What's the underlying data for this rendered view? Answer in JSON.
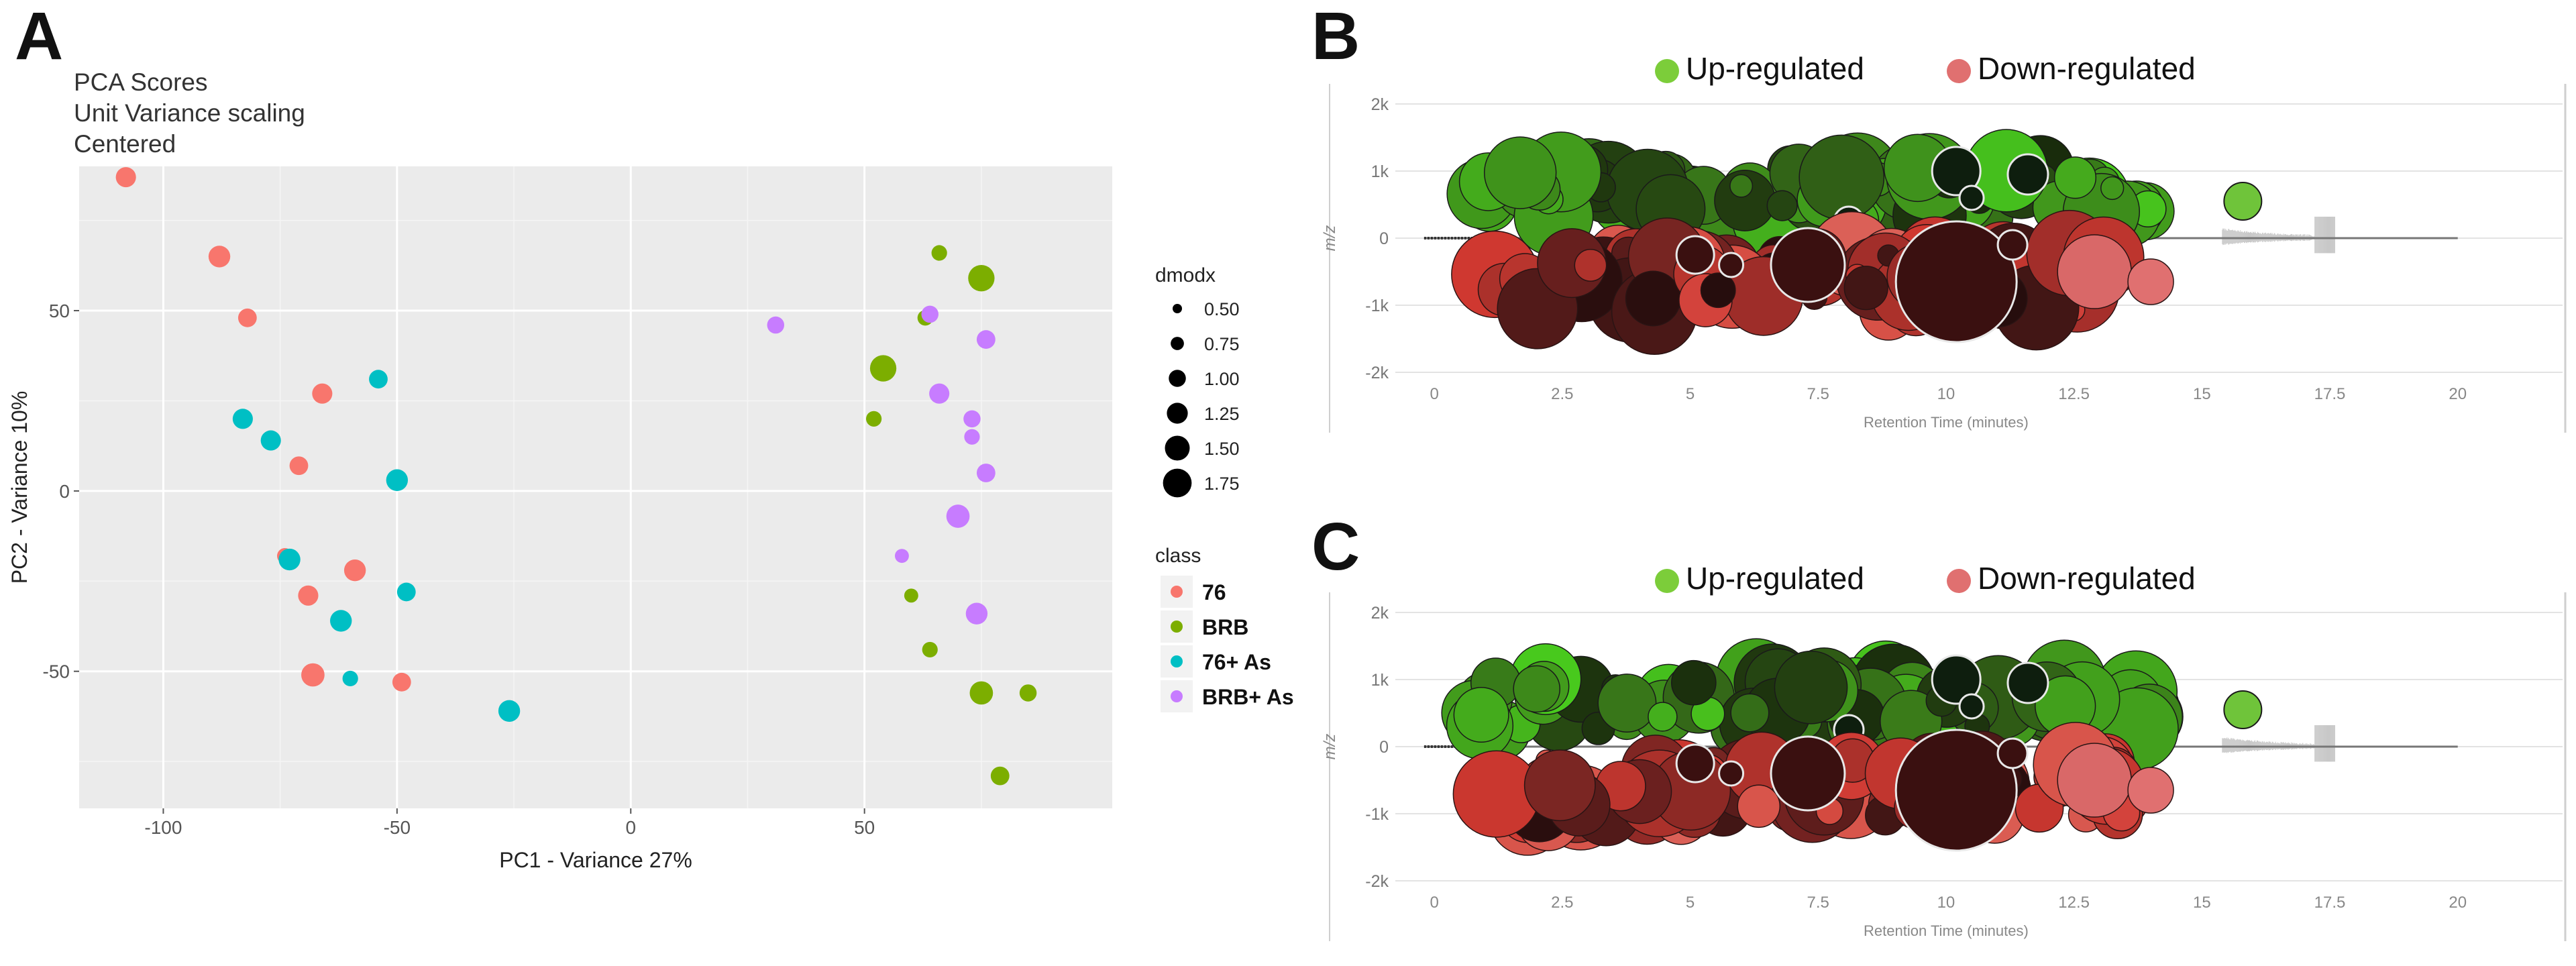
{
  "panel_labels": {
    "a": "A",
    "b": "B",
    "c": "C"
  },
  "chart_data": [
    {
      "type": "scatter",
      "panel": "A",
      "title_lines": [
        "PCA Scores",
        "Unit Variance scaling",
        "Centered"
      ],
      "xlabel": "PC1 - Variance 27%",
      "ylabel": "PC2 - Variance 10%",
      "xlim": [
        -118,
        103
      ],
      "ylim": [
        -88,
        90
      ],
      "xticks": [
        -100,
        -50,
        0,
        50
      ],
      "yticks": [
        -50,
        0,
        50
      ],
      "size_legend_title": "dmodx",
      "size_legend": [
        0.5,
        0.75,
        1.0,
        1.25,
        1.5,
        1.75
      ],
      "size_legend_labels": [
        "0.50",
        "0.75",
        "1.00",
        "1.25",
        "1.50",
        "1.75"
      ],
      "class_legend_title": "class",
      "series": [
        {
          "name": "76",
          "color": "#f8766d",
          "points": [
            {
              "x": -108,
              "y": 87,
              "d": 1.2
            },
            {
              "x": -88,
              "y": 65,
              "d": 1.3
            },
            {
              "x": -82,
              "y": 48,
              "d": 1.1
            },
            {
              "x": -66,
              "y": 27,
              "d": 1.2
            },
            {
              "x": -71,
              "y": 7,
              "d": 1.1
            },
            {
              "x": -74,
              "y": -18,
              "d": 0.9
            },
            {
              "x": -59,
              "y": -22,
              "d": 1.3
            },
            {
              "x": -69,
              "y": -29,
              "d": 1.2
            },
            {
              "x": -68,
              "y": -51,
              "d": 1.4
            },
            {
              "x": -49,
              "y": -53,
              "d": 1.1
            }
          ]
        },
        {
          "name": "BRB",
          "color": "#7cae00",
          "points": [
            {
              "x": 66,
              "y": 66,
              "d": 0.9
            },
            {
              "x": 75,
              "y": 59,
              "d": 1.6
            },
            {
              "x": 63,
              "y": 48,
              "d": 0.9
            },
            {
              "x": 54,
              "y": 34,
              "d": 1.6
            },
            {
              "x": 52,
              "y": 20,
              "d": 0.9
            },
            {
              "x": 60,
              "y": -29,
              "d": 0.8
            },
            {
              "x": 64,
              "y": -44,
              "d": 0.9
            },
            {
              "x": 75,
              "y": -56,
              "d": 1.4
            },
            {
              "x": 85,
              "y": -56,
              "d": 1.0
            },
            {
              "x": 79,
              "y": -79,
              "d": 1.1
            }
          ]
        },
        {
          "name": "76+ As",
          "color": "#00bfc4",
          "points": [
            {
              "x": -54,
              "y": 31,
              "d": 1.1
            },
            {
              "x": -83,
              "y": 20,
              "d": 1.2
            },
            {
              "x": -77,
              "y": 14,
              "d": 1.2
            },
            {
              "x": -50,
              "y": 3,
              "d": 1.3
            },
            {
              "x": -73,
              "y": -19,
              "d": 1.3
            },
            {
              "x": -48,
              "y": -28,
              "d": 1.1
            },
            {
              "x": -62,
              "y": -36,
              "d": 1.3
            },
            {
              "x": -60,
              "y": -52,
              "d": 0.9
            },
            {
              "x": -26,
              "y": -61,
              "d": 1.3
            }
          ]
        },
        {
          "name": "BRB+ As",
          "color": "#c77cff",
          "points": [
            {
              "x": 31,
              "y": 46,
              "d": 1.0
            },
            {
              "x": 64,
              "y": 49,
              "d": 1.0
            },
            {
              "x": 76,
              "y": 42,
              "d": 1.1
            },
            {
              "x": 66,
              "y": 27,
              "d": 1.2
            },
            {
              "x": 73,
              "y": 20,
              "d": 1.0
            },
            {
              "x": 73,
              "y": 15,
              "d": 0.9
            },
            {
              "x": 76,
              "y": 5,
              "d": 1.1
            },
            {
              "x": 70,
              "y": -7,
              "d": 1.4
            },
            {
              "x": 58,
              "y": -18,
              "d": 0.8
            },
            {
              "x": 74,
              "y": -34,
              "d": 1.3
            }
          ]
        }
      ]
    },
    {
      "type": "scatter",
      "panel": "B",
      "legend": [
        {
          "name": "Up-regulated",
          "color": "#7ccd3a"
        },
        {
          "name": "Down-regulated",
          "color": "#e07070"
        }
      ],
      "xlabel": "Retention Time (minutes)",
      "ylabel": "m/z",
      "xlim": [
        -0.5,
        21
      ],
      "ylim": [
        -2000,
        2000
      ],
      "xticks": [
        0,
        2.5,
        5,
        7.5,
        10,
        12.5,
        15,
        17.5,
        20
      ],
      "xtick_labels": [
        "0",
        "2.5",
        "5",
        "7.5",
        "10",
        "12.5",
        "15",
        "17.5",
        "20"
      ],
      "yticks": [
        -2000,
        -1000,
        0,
        1000,
        2000
      ],
      "ytick_labels": [
        "-2k",
        "-1k",
        "0",
        "1k",
        "2k"
      ]
    },
    {
      "type": "scatter",
      "panel": "C",
      "legend": [
        {
          "name": "Up-regulated",
          "color": "#7ccd3a"
        },
        {
          "name": "Down-regulated",
          "color": "#e07070"
        }
      ],
      "xlabel": "Retention Time (minutes)",
      "ylabel": "m/z",
      "xlim": [
        -0.5,
        21
      ],
      "ylim": [
        -2000,
        2000
      ],
      "xticks": [
        0,
        2.5,
        5,
        7.5,
        10,
        12.5,
        15,
        17.5,
        20
      ],
      "xtick_labels": [
        "0",
        "2.5",
        "5",
        "7.5",
        "10",
        "12.5",
        "15",
        "17.5",
        "20"
      ],
      "yticks": [
        -2000,
        -1000,
        0,
        1000,
        2000
      ],
      "ytick_labels": [
        "-2k",
        "-1k",
        "0",
        "1k",
        "2k"
      ]
    }
  ]
}
